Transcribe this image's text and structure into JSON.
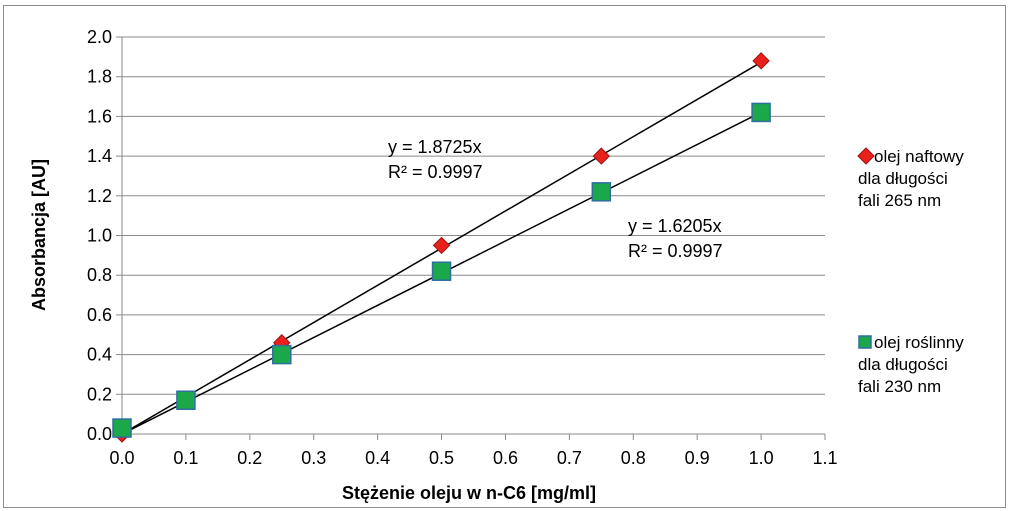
{
  "chart_data": {
    "type": "scatter",
    "title": "",
    "xlabel": "Stężenie oleju w n-C6 [mg/ml]",
    "ylabel": "Absorbancja [AU]",
    "xlim": [
      0.0,
      1.1
    ],
    "ylim": [
      0.0,
      2.0
    ],
    "xticks": [
      "0.0",
      "0.1",
      "0.2",
      "0.3",
      "0.4",
      "0.5",
      "0.6",
      "0.7",
      "0.8",
      "0.9",
      "1.0",
      "1.1"
    ],
    "yticks": [
      "0.0",
      "0.2",
      "0.4",
      "0.6",
      "0.8",
      "1.0",
      "1.2",
      "1.4",
      "1.6",
      "1.8",
      "2.0"
    ],
    "grid": "horizontal",
    "legend_position": "right",
    "series": [
      {
        "name_lines": [
          "olej naftowy",
          "dla długości",
          "fali 265 nm"
        ],
        "marker": "diamond",
        "color": "#e8221b",
        "stroke": "#a01010",
        "x": [
          0.0,
          0.25,
          0.5,
          0.75,
          1.0
        ],
        "y": [
          0.0,
          0.46,
          0.95,
          1.4,
          1.88
        ],
        "trendline": {
          "slope": 1.8725,
          "x_range": [
            0.0,
            1.0
          ]
        },
        "equation": "y = 1.8725x",
        "r2": "R² = 0.9997"
      },
      {
        "name_lines": [
          "olej roślinny",
          "dla długości",
          "fali 230 nm"
        ],
        "marker": "square",
        "color": "#1aa84a",
        "stroke": "#2f6fa0",
        "x": [
          0.0,
          0.1,
          0.25,
          0.5,
          0.75,
          1.0
        ],
        "y": [
          0.03,
          0.17,
          0.4,
          0.82,
          1.22,
          1.62
        ],
        "trendline": {
          "slope": 1.6205,
          "x_range": [
            0.0,
            1.0
          ]
        },
        "equation": "y = 1.6205x",
        "r2": "R² = 0.9997"
      }
    ]
  }
}
